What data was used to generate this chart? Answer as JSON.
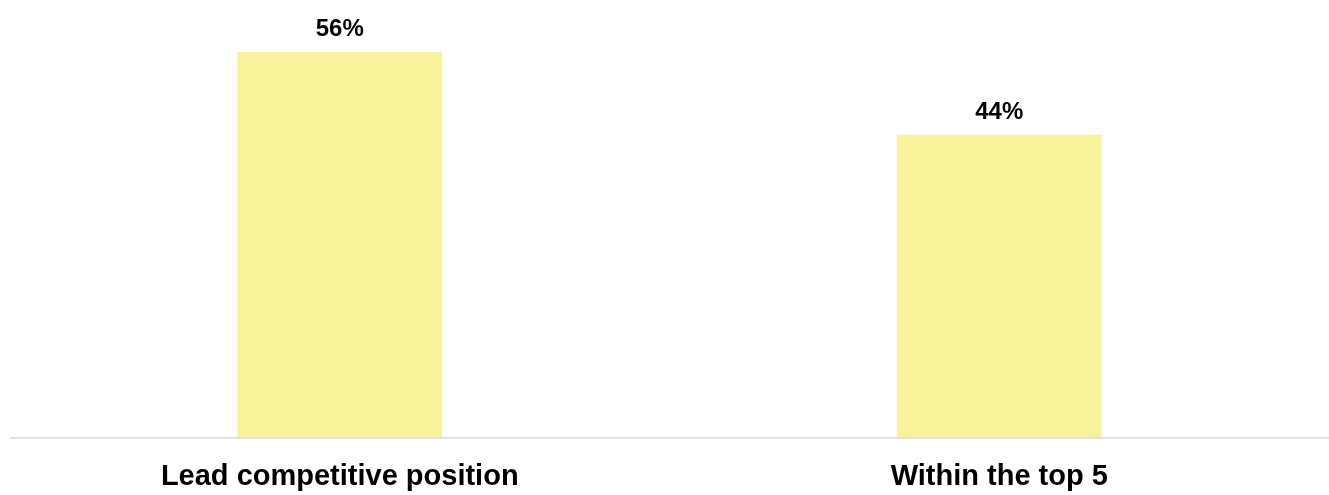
{
  "chart_data": {
    "type": "bar",
    "categories": [
      "Lead competitive position",
      "Within the top 5"
    ],
    "values": [
      56,
      44
    ],
    "value_labels": [
      "56%",
      "44%"
    ],
    "color": "#f8f39b"
  }
}
